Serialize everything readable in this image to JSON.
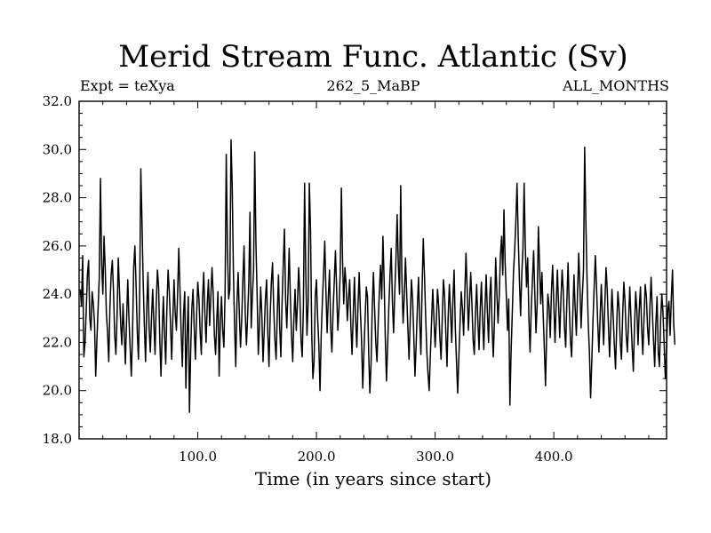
{
  "header": {
    "title": "Merid Stream Func. Atlantic (Sv)",
    "left": "Expt = teXya",
    "center": "262_5_MaBP",
    "right": "ALL_MONTHS"
  },
  "chart_data": {
    "type": "line",
    "title": "Merid Stream Func. Atlantic (Sv)",
    "xlabel": "Time (in years since start)",
    "ylabel": "",
    "xlim": [
      0,
      495
    ],
    "ylim": [
      18,
      32
    ],
    "x_ticks": [
      100,
      200,
      300,
      400
    ],
    "x_tick_labels": [
      "100.0",
      "200.0",
      "300.0",
      "400.0"
    ],
    "y_ticks": [
      18,
      20,
      22,
      24,
      26,
      28,
      30,
      32
    ],
    "y_tick_labels": [
      "18.0",
      "20.0",
      "22.0",
      "24.0",
      "26.0",
      "28.0",
      "30.0",
      "32.0"
    ],
    "grid": false,
    "x_start": 1,
    "x_step": 1,
    "series": [
      {
        "values": [
          24.2,
          23.5,
          25.6,
          21.4,
          22.0,
          23.3,
          24.8,
          25.4,
          23.0,
          22.5,
          24.1,
          23.6,
          22.8,
          20.6,
          22.1,
          23.4,
          24.7,
          28.8,
          25.3,
          24.0,
          26.4,
          25.1,
          23.2,
          22.4,
          21.2,
          23.5,
          24.8,
          25.4,
          24.1,
          22.3,
          21.5,
          23.1,
          25.5,
          24.2,
          22.8,
          21.9,
          23.6,
          22.4,
          21.1,
          22.9,
          24.6,
          23.0,
          21.8,
          20.6,
          22.3,
          25.1,
          26.0,
          24.4,
          22.5,
          21.3,
          23.8,
          29.2,
          27.0,
          24.5,
          22.7,
          21.2,
          23.4,
          24.9,
          22.6,
          21.6,
          23.0,
          24.2,
          22.8,
          21.5,
          23.6,
          25.0,
          24.3,
          22.1,
          20.6,
          22.4,
          23.9,
          22.3,
          21.1,
          23.5,
          25.0,
          24.1,
          22.8,
          21.3,
          23.0,
          24.6,
          23.2,
          22.5,
          24.0,
          25.9,
          24.2,
          22.4,
          21.0,
          23.2,
          24.1,
          20.1,
          22.3,
          23.9,
          19.1,
          21.6,
          23.4,
          24.2,
          22.6,
          21.3,
          23.1,
          24.5,
          23.8,
          22.4,
          21.5,
          23.8,
          24.9,
          23.2,
          22.0,
          23.6,
          24.6,
          22.7,
          23.9,
          25.1,
          24.0,
          22.3,
          21.5,
          22.9,
          24.1,
          20.6,
          22.8,
          23.9,
          22.5,
          21.8,
          24.0,
          29.8,
          25.9,
          23.8,
          24.2,
          30.4,
          28.5,
          25.0,
          22.7,
          21.0,
          23.6,
          24.9,
          23.2,
          21.8,
          22.9,
          24.6,
          26.0,
          23.2,
          21.9,
          23.1,
          24.5,
          27.4,
          22.6,
          23.9,
          25.0,
          29.9,
          26.1,
          24.0,
          21.5,
          22.7,
          24.3,
          23.1,
          21.2,
          22.5,
          23.8,
          24.6,
          22.4,
          21.0,
          23.1,
          24.5,
          25.3,
          23.4,
          22.1,
          21.3,
          23.2,
          24.8,
          22.7,
          21.4,
          23.6,
          25.2,
          26.7,
          23.8,
          22.6,
          24.1,
          25.9,
          23.9,
          22.3,
          21.2,
          23.0,
          24.2,
          22.5,
          23.6,
          25.1,
          24.0,
          22.1,
          21.4,
          23.5,
          28.6,
          24.9,
          22.3,
          23.6,
          28.6,
          26.7,
          22.4,
          20.5,
          21.2,
          23.9,
          24.6,
          23.0,
          21.9,
          20.0,
          22.3,
          23.7,
          24.9,
          26.2,
          24.1,
          22.4,
          23.9,
          25.0,
          22.6,
          21.6,
          23.3,
          24.5,
          25.8,
          24.2,
          22.5,
          23.4,
          24.9,
          28.4,
          25.4,
          23.6,
          25.1,
          24.4,
          22.9,
          23.8,
          24.6,
          22.7,
          21.5,
          23.2,
          24.7,
          23.0,
          21.8,
          23.5,
          24.9,
          23.3,
          22.1,
          20.1,
          21.6,
          23.0,
          24.3,
          23.9,
          21.6,
          19.9,
          21.1,
          23.4,
          24.9,
          23.4,
          22.0,
          21.2,
          22.8,
          24.1,
          25.2,
          23.8,
          26.4,
          24.6,
          22.2,
          20.4,
          21.9,
          23.5,
          24.8,
          25.9,
          23.7,
          22.4,
          24.1,
          25.5,
          27.3,
          25.2,
          24.0,
          28.5,
          24.6,
          22.8,
          23.9,
          25.5,
          24.1,
          22.6,
          21.3,
          22.9,
          24.6,
          23.8,
          22.3,
          20.6,
          21.9,
          23.4,
          24.7,
          22.9,
          21.5,
          24.2,
          26.3,
          24.8,
          23.1,
          21.6,
          20.7,
          20.0,
          21.5,
          22.9,
          24.2,
          23.0,
          21.8,
          22.9,
          24.2,
          23.5,
          22.2,
          21.3,
          23.0,
          24.6,
          23.9,
          22.4,
          21.0,
          23.1,
          24.4,
          23.2,
          22.0,
          23.8,
          25.0,
          22.6,
          21.2,
          19.9,
          21.4,
          22.8,
          24.1,
          23.4,
          22.3,
          24.0,
          25.7,
          24.2,
          22.5,
          23.7,
          24.9,
          23.6,
          22.1,
          21.5,
          23.2,
          24.4,
          22.9,
          21.7,
          23.4,
          24.5,
          22.9,
          21.7,
          23.4,
          24.8,
          23.3,
          22.0,
          23.9,
          24.7,
          22.6,
          21.4,
          22.9,
          25.5,
          24.1,
          22.8,
          23.9,
          25.6,
          26.4,
          24.8,
          27.5,
          25.3,
          23.9,
          22.5,
          23.8,
          19.4,
          21.6,
          23.2,
          24.9,
          25.8,
          27.0,
          28.6,
          26.4,
          24.6,
          23.1,
          24.8,
          25.9,
          28.6,
          25.9,
          24.3,
          25.5,
          23.0,
          21.6,
          23.4,
          24.6,
          25.8,
          24.0,
          22.4,
          23.6,
          26.8,
          25.2,
          23.6,
          24.9,
          23.2,
          21.8,
          20.2,
          22.4,
          24.0,
          23.5,
          22.2,
          24.1,
          25.2,
          23.6,
          22.0,
          23.6,
          25.0,
          23.6,
          22.2,
          23.8,
          25.0,
          24.1,
          22.6,
          21.8,
          23.7,
          25.3,
          23.5,
          22.1,
          21.4,
          23.2,
          24.8,
          23.4,
          22.3,
          24.1,
          25.7,
          24.3,
          22.6,
          23.9,
          25.0,
          30.1,
          27.0,
          24.6,
          22.8,
          21.6,
          19.7,
          21.2,
          22.9,
          24.3,
          25.6,
          24.3,
          22.8,
          21.6,
          23.0,
          24.4,
          23.1,
          21.9,
          23.6,
          25.1,
          24.2,
          22.7,
          21.4,
          22.8,
          24.2,
          23.1,
          21.9,
          20.9,
          22.7,
          24.1,
          23.4,
          22.0,
          21.3,
          23.1,
          24.5,
          23.7,
          22.3,
          21.6,
          22.9,
          24.3,
          23.0,
          21.8,
          20.8,
          22.7,
          24.1,
          23.3,
          21.9,
          23.4,
          24.3,
          22.6,
          21.5,
          23.0,
          24.4,
          23.9,
          22.6,
          21.9,
          23.5,
          24.7,
          23.3,
          22.1,
          21.0,
          22.8,
          23.9,
          21.6,
          21.0,
          22.9,
          24.0,
          23.2,
          21.9,
          20.5,
          21.7,
          23.3,
          23.7,
          22.3,
          23.8,
          25.0,
          22.8,
          21.9
        ]
      }
    ]
  }
}
